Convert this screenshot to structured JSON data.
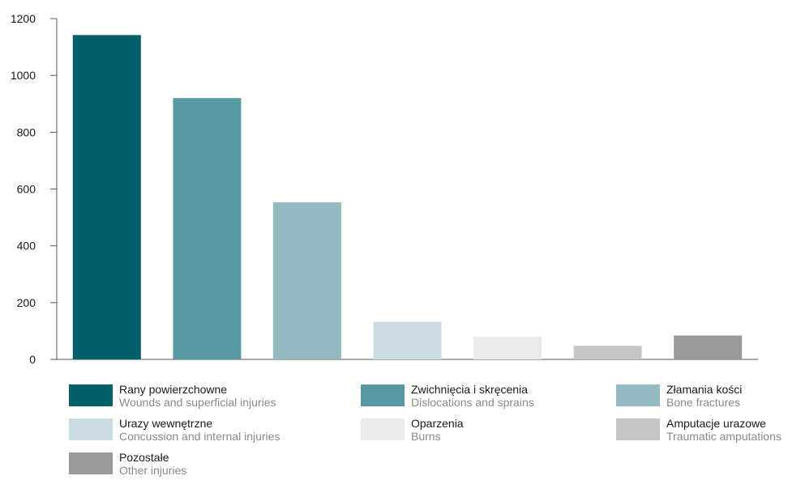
{
  "chart_data": {
    "type": "bar",
    "title": "",
    "xlabel": "",
    "ylabel": "",
    "ylim": [
      0,
      1200
    ],
    "yticks": [
      0,
      200,
      400,
      600,
      800,
      1000,
      1200
    ],
    "grid": false,
    "legend_position": "bottom",
    "categories": [
      {
        "label_pl": "Rany powierzchowne",
        "label_en": "Wounds and superficial injuries",
        "value": 1142,
        "color": "#03606b"
      },
      {
        "label_pl": "Zwichnięcia i skręcenia",
        "label_en": "Dislocations and sprains",
        "value": 920,
        "color": "#5699a3"
      },
      {
        "label_pl": "Złamania kości",
        "label_en": "Bone fractures",
        "value": 553,
        "color": "#93b9c1"
      },
      {
        "label_pl": "Urazy wewnętrzne",
        "label_en": "Concussion and internal injuries",
        "value": 132,
        "color": "#cbdde2"
      },
      {
        "label_pl": "Oparzenia",
        "label_en": "Burns",
        "value": 80,
        "color": "#ebebeb"
      },
      {
        "label_pl": "Amputacje urazowe",
        "label_en": "Traumatic amputations",
        "value": 48,
        "color": "#c6c6c6"
      },
      {
        "label_pl": "Pozostałe",
        "label_en": "Other injuries",
        "value": 84,
        "color": "#999999"
      }
    ]
  }
}
